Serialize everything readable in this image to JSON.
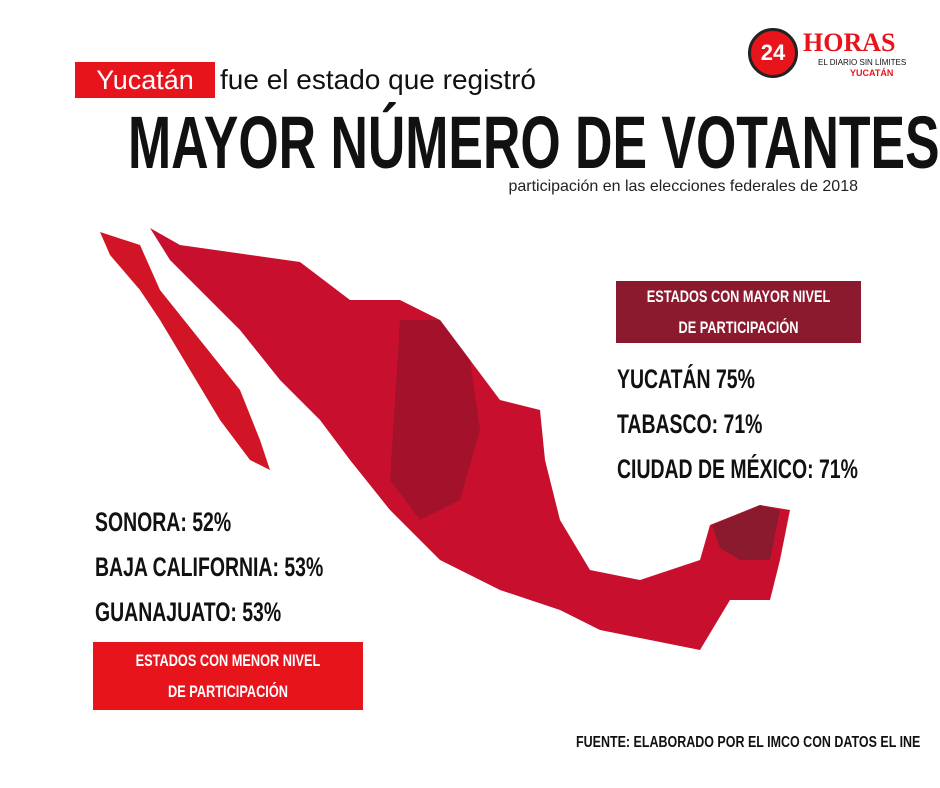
{
  "header": {
    "highlight": "Yucatán",
    "lead": "fue el estado que registró",
    "title": "MAYOR NÚMERO DE VOTANTES",
    "subtitle": "participación en las elecciones federales de 2018"
  },
  "logo": {
    "number": "24",
    "name": "HORAS",
    "tagline": "EL DIARIO SIN LÍMITES",
    "edition": "YUCATÁN"
  },
  "high": {
    "heading": "ESTADOS CON MAYOR  NIVEL DE PARTICIPACIÓN",
    "items": [
      "YUCATÁN 75%",
      "TABASCO: 71%",
      "CIUDAD DE MÉXICO: 71%"
    ]
  },
  "low": {
    "items": [
      "SONORA: 52%",
      "BAJA CALIFORNIA: 53%",
      "GUANAJUATO: 53%"
    ],
    "heading": "ESTADOS CON MENOR NIVEL DE PARTICIPACIÓN"
  },
  "source": "FUENTE: ELABORADO POR EL IMCO CON DATOS EL INE"
}
